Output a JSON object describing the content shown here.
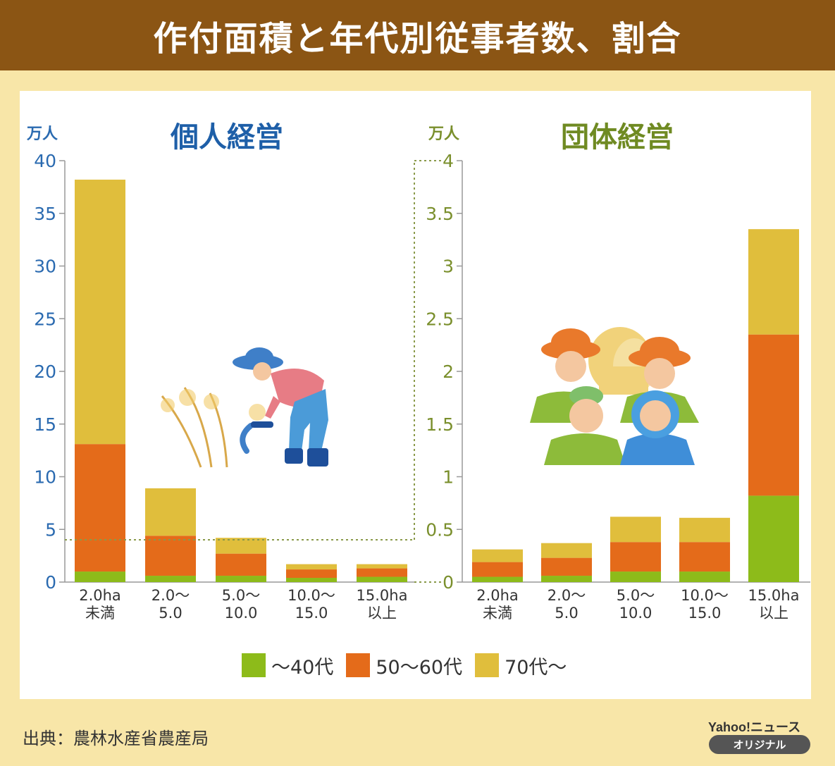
{
  "title": "作付面積と年代別従事者数、割合",
  "colors": {
    "header_bg": "#8b5514",
    "page_bg": "#f8e6a8",
    "age_40": "#8dbb1a",
    "age_50_60": "#e46b1a",
    "age_70": "#e0be3c",
    "left_axis": "#2a6ab0",
    "right_axis": "#7a8f2c"
  },
  "legend": [
    "〜40代",
    "50〜60代",
    "70代〜"
  ],
  "chart_data": [
    {
      "type": "bar",
      "stacked": true,
      "title": "個人経営",
      "ylabel": "万人",
      "ylim": [
        0,
        40
      ],
      "yticks": [
        "0",
        "5",
        "10",
        "15",
        "20",
        "25",
        "30",
        "35",
        "40"
      ],
      "categories": [
        "2.0ha\n未満",
        "2.0〜\n5.0",
        "5.0〜\n10.0",
        "10.0〜\n15.0",
        "15.0ha\n以上"
      ],
      "series": [
        {
          "name": "〜40代",
          "values": [
            1.0,
            0.6,
            0.6,
            0.4,
            0.5
          ]
        },
        {
          "name": "50〜60代",
          "values": [
            12.1,
            3.8,
            2.1,
            0.8,
            0.8
          ]
        },
        {
          "name": "70代〜",
          "values": [
            25.1,
            4.5,
            1.5,
            0.5,
            0.4
          ]
        }
      ]
    },
    {
      "type": "bar",
      "stacked": true,
      "title": "団体経営",
      "ylabel": "万人",
      "ylim": [
        0,
        4
      ],
      "yticks": [
        "0",
        "0.5",
        "1",
        "1.5",
        "2",
        "2.5",
        "3",
        "3.5",
        "4"
      ],
      "categories": [
        "2.0ha\n未満",
        "2.0〜\n5.0",
        "5.0〜\n10.0",
        "10.0〜\n15.0",
        "15.0ha\n以上"
      ],
      "series": [
        {
          "name": "〜40代",
          "values": [
            0.05,
            0.06,
            0.1,
            0.1,
            0.82
          ]
        },
        {
          "name": "50〜60代",
          "values": [
            0.14,
            0.17,
            0.28,
            0.28,
            1.53
          ]
        },
        {
          "name": "70代〜",
          "values": [
            0.12,
            0.14,
            0.24,
            0.23,
            1.0
          ]
        }
      ]
    }
  ],
  "source": "出典：農林水産省農産局",
  "brand": {
    "name": "Yahoo!ニュース",
    "tag": "オリジナル"
  }
}
